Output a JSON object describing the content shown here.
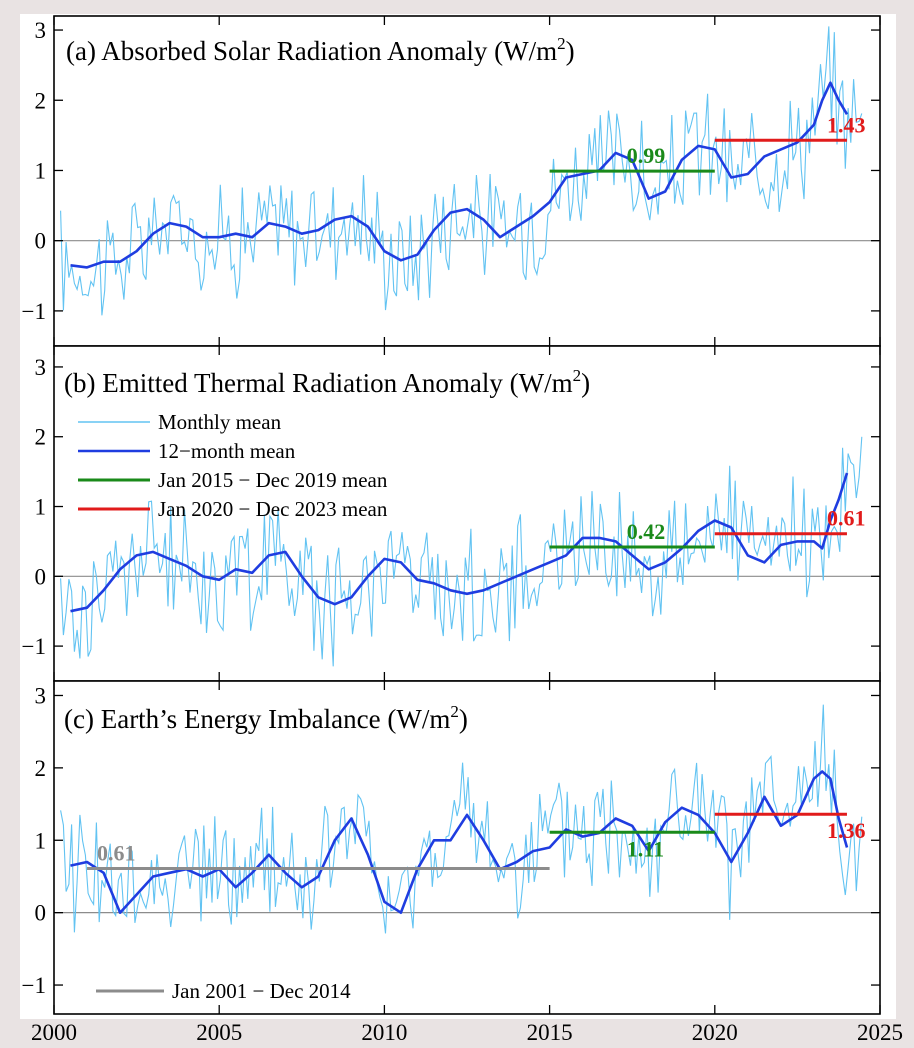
{
  "chart_data": {
    "type": "line",
    "xlim": [
      2000,
      2025
    ],
    "x_ticks": [
      "2000",
      "2005",
      "2010",
      "2015",
      "2020",
      "2025"
    ],
    "y_ticks": [
      "3",
      "2",
      "1",
      "0",
      "−1"
    ],
    "colors": {
      "monthly": "#62c3f2",
      "smooth": "#1f3de0",
      "period_2015_2019": "#1a8a1a",
      "period_2020_2023": "#e11b1b",
      "period_2001_2014": "#8c8c8c",
      "zero_line": "#8c8c8c"
    },
    "legend_top": [
      {
        "key": "monthly",
        "label": "Monthly mean"
      },
      {
        "key": "smooth",
        "label": "12−month mean"
      },
      {
        "key": "period_2015_2019",
        "label": "Jan 2015 − Dec 2019 mean"
      },
      {
        "key": "period_2020_2023",
        "label": "Jan 2020 − Dec 2023 mean"
      }
    ],
    "legend_bottom": {
      "key": "period_2001_2014",
      "label": "Jan 2001 − Dec 2014"
    },
    "panels": [
      {
        "id": "a",
        "title": "(a)  Absorbed Solar Radiation Anomaly (W/m",
        "title_sup": "2",
        "title_end": ")",
        "ylim": [
          -1.5,
          3.2
        ],
        "smooth": {
          "x": [
            2000.5,
            2001,
            2001.5,
            2002,
            2002.5,
            2003,
            2003.5,
            2004,
            2004.5,
            2005,
            2005.5,
            2006,
            2006.5,
            2007,
            2007.5,
            2008,
            2008.5,
            2009,
            2009.5,
            2010,
            2010.5,
            2011,
            2011.5,
            2012,
            2012.5,
            2013,
            2013.5,
            2014,
            2014.5,
            2015,
            2015.5,
            2016,
            2016.5,
            2017,
            2017.5,
            2018,
            2018.5,
            2019,
            2019.5,
            2020,
            2020.5,
            2021,
            2021.5,
            2022,
            2022.5,
            2023,
            2023.25,
            2023.5,
            2023.75,
            2024
          ],
          "y": [
            -0.35,
            -0.38,
            -0.3,
            -0.3,
            -0.15,
            0.1,
            0.25,
            0.2,
            0.05,
            0.05,
            0.1,
            0.05,
            0.25,
            0.2,
            0.1,
            0.15,
            0.3,
            0.35,
            0.2,
            -0.15,
            -0.28,
            -0.2,
            0.15,
            0.4,
            0.45,
            0.3,
            0.05,
            0.2,
            0.35,
            0.55,
            0.9,
            0.95,
            1.0,
            1.25,
            1.15,
            0.6,
            0.7,
            1.15,
            1.35,
            1.3,
            0.9,
            0.95,
            1.2,
            1.3,
            1.4,
            1.65,
            2.0,
            2.25,
            2.0,
            1.8
          ]
        },
        "period_means": [
          {
            "key": "period_2015_2019",
            "x_start": 2015,
            "x_end": 2020,
            "value": 0.99,
            "label": "0.99"
          },
          {
            "key": "period_2020_2023",
            "x_start": 2020,
            "x_end": 2024,
            "value": 1.43,
            "label": "1.43"
          }
        ]
      },
      {
        "id": "b",
        "title": "(b)  Emitted Thermal Radiation Anomaly (W/m",
        "title_sup": "2",
        "title_end": ")",
        "ylim": [
          -1.5,
          3.3
        ],
        "smooth": {
          "x": [
            2000.5,
            2001,
            2001.5,
            2002,
            2002.5,
            2003,
            2003.5,
            2004,
            2004.5,
            2005,
            2005.5,
            2006,
            2006.5,
            2007,
            2007.5,
            2008,
            2008.5,
            2009,
            2009.5,
            2010,
            2010.5,
            2011,
            2011.5,
            2012,
            2012.5,
            2013,
            2013.5,
            2014,
            2014.5,
            2015,
            2015.5,
            2016,
            2016.5,
            2017,
            2017.5,
            2018,
            2018.5,
            2019,
            2019.5,
            2020,
            2020.5,
            2021,
            2021.5,
            2022,
            2022.5,
            2023,
            2023.25,
            2023.5,
            2023.75,
            2024
          ],
          "y": [
            -0.5,
            -0.45,
            -0.2,
            0.1,
            0.3,
            0.35,
            0.25,
            0.15,
            0.0,
            -0.05,
            0.1,
            0.05,
            0.3,
            0.35,
            0.0,
            -0.3,
            -0.4,
            -0.3,
            0.0,
            0.25,
            0.2,
            -0.05,
            -0.1,
            -0.2,
            -0.25,
            -0.2,
            -0.1,
            0.0,
            0.1,
            0.2,
            0.3,
            0.55,
            0.55,
            0.5,
            0.3,
            0.1,
            0.2,
            0.4,
            0.65,
            0.8,
            0.7,
            0.3,
            0.2,
            0.45,
            0.5,
            0.5,
            0.4,
            0.8,
            1.1,
            1.48
          ]
        },
        "period_means": [
          {
            "key": "period_2015_2019",
            "x_start": 2015,
            "x_end": 2020,
            "value": 0.42,
            "label": "0.42"
          },
          {
            "key": "period_2020_2023",
            "x_start": 2020,
            "x_end": 2024,
            "value": 0.61,
            "label": "0.61"
          }
        ]
      },
      {
        "id": "c",
        "title": "(c)  Earth’s Energy Imbalance (W/m",
        "title_sup": "2",
        "title_end": ")",
        "ylim": [
          -1.4,
          3.2
        ],
        "smooth": {
          "x": [
            2000.5,
            2001,
            2001.5,
            2002,
            2002.5,
            2003,
            2003.5,
            2004,
            2004.5,
            2005,
            2005.5,
            2006,
            2006.5,
            2007,
            2007.5,
            2008,
            2008.5,
            2009,
            2009.5,
            2010,
            2010.5,
            2011,
            2011.5,
            2012,
            2012.5,
            2013,
            2013.5,
            2014,
            2014.5,
            2015,
            2015.5,
            2016,
            2016.5,
            2017,
            2017.5,
            2018,
            2018.5,
            2019,
            2019.5,
            2020,
            2020.5,
            2021,
            2021.5,
            2022,
            2022.5,
            2023,
            2023.25,
            2023.5,
            2023.75,
            2024
          ],
          "y": [
            0.65,
            0.7,
            0.55,
            0.0,
            0.25,
            0.5,
            0.55,
            0.6,
            0.5,
            0.6,
            0.35,
            0.55,
            0.8,
            0.55,
            0.35,
            0.5,
            1.0,
            1.3,
            0.8,
            0.15,
            0.0,
            0.6,
            1.0,
            1.0,
            1.35,
            1.0,
            0.6,
            0.7,
            0.85,
            0.9,
            1.15,
            1.05,
            1.1,
            1.3,
            1.2,
            0.85,
            1.25,
            1.45,
            1.35,
            1.1,
            0.7,
            1.1,
            1.6,
            1.2,
            1.35,
            1.85,
            1.95,
            1.85,
            1.3,
            0.9
          ]
        },
        "period_means": [
          {
            "key": "period_2001_2014",
            "x_start": 2001,
            "x_end": 2015,
            "value": 0.61,
            "label": "0.61"
          },
          {
            "key": "period_2015_2019",
            "x_start": 2015,
            "x_end": 2020,
            "value": 1.11,
            "label": "1.11"
          },
          {
            "key": "period_2020_2023",
            "x_start": 2020,
            "x_end": 2024,
            "value": 1.36,
            "label": "1.36"
          }
        ]
      }
    ]
  }
}
